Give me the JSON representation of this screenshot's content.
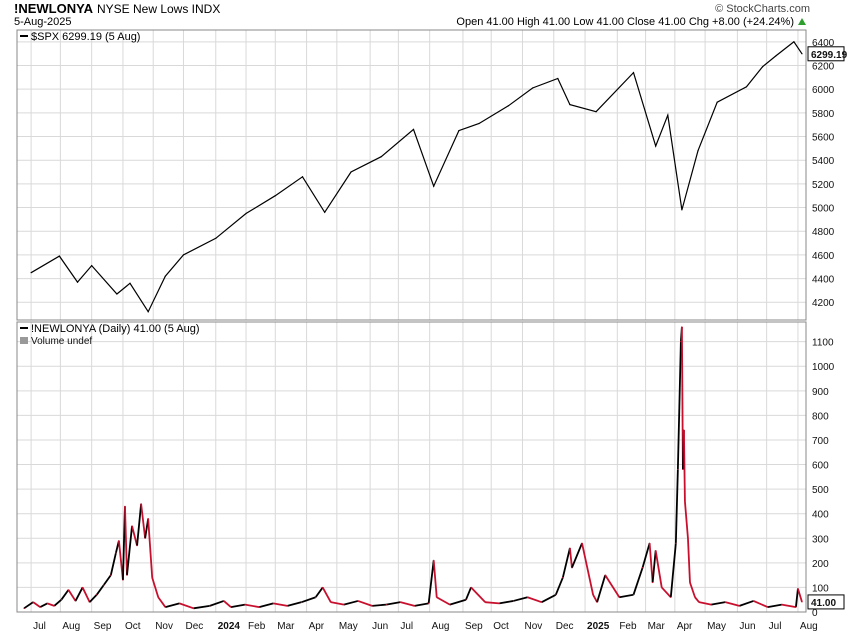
{
  "header": {
    "symbol": "!NEWLONYA",
    "description": "NYSE New Lows INDX",
    "date": "5-Aug-2025",
    "brand": "© StockCharts.com",
    "ohlc": "Open 41.00  High 41.00  Low 41.00  Close 41.00  Chg +8.00 (+24.24%)"
  },
  "colors": {
    "up": "#000000",
    "down": "#c8102e",
    "grid": "#d9d9d9",
    "change_arrow": "#2e9e2e"
  },
  "chart_data": [
    {
      "type": "line",
      "title": "$SPX 6299.19 (5 Aug)",
      "ylim": [
        4050,
        6500
      ],
      "yticks": [
        4200,
        4400,
        4600,
        4800,
        5000,
        5200,
        5400,
        5600,
        5800,
        6000,
        6200,
        6400
      ],
      "last_value_label": "6299.19",
      "series": [
        {
          "name": "$SPX",
          "x": [
            "2023-07-03",
            "2023-07-31",
            "2023-08-18",
            "2023-09-01",
            "2023-09-26",
            "2023-10-09",
            "2023-10-27",
            "2023-11-13",
            "2023-12-01",
            "2024-01-02",
            "2024-02-01",
            "2024-03-01",
            "2024-03-28",
            "2024-04-19",
            "2024-05-15",
            "2024-06-14",
            "2024-07-16",
            "2024-08-05",
            "2024-08-30",
            "2024-09-19",
            "2024-10-18",
            "2024-11-11",
            "2024-12-06",
            "2024-12-18",
            "2025-01-13",
            "2025-02-19",
            "2025-03-13",
            "2025-03-25",
            "2025-04-08",
            "2025-04-24",
            "2025-05-13",
            "2025-06-11",
            "2025-06-27",
            "2025-07-10",
            "2025-07-28",
            "2025-08-05"
          ],
          "values": [
            4450,
            4590,
            4370,
            4510,
            4270,
            4360,
            4120,
            4420,
            4600,
            4740,
            4950,
            5100,
            5260,
            4960,
            5300,
            5430,
            5660,
            5180,
            5650,
            5710,
            5860,
            6010,
            6090,
            5870,
            5810,
            6140,
            5520,
            5780,
            4980,
            5480,
            5890,
            6020,
            6190,
            6280,
            6400,
            6299
          ]
        }
      ]
    },
    {
      "type": "line",
      "title": "!NEWLONYA (Daily) 41.00 (5 Aug)",
      "subtitle": "Volume undef",
      "ylim": [
        0,
        1180
      ],
      "yticks": [
        0,
        100,
        200,
        300,
        400,
        500,
        600,
        700,
        800,
        900,
        1000,
        1100
      ],
      "last_value_label": "41.00",
      "x_tick_labels": [
        "Jul",
        "Aug",
        "Sep",
        "Oct",
        "Nov",
        "Dec",
        "2024",
        "Feb",
        "Mar",
        "Apr",
        "May",
        "Jun",
        "Jul",
        "Aug",
        "Sep",
        "Oct",
        "Nov",
        "Dec",
        "2025",
        "Feb",
        "Mar",
        "Apr",
        "May",
        "Jun",
        "Jul",
        "Aug"
      ],
      "x_tick_dates": [
        "2023-07-03",
        "2023-08-01",
        "2023-09-01",
        "2023-10-02",
        "2023-11-01",
        "2023-12-01",
        "2024-01-02",
        "2024-02-01",
        "2024-03-01",
        "2024-04-01",
        "2024-05-01",
        "2024-06-03",
        "2024-07-01",
        "2024-08-01",
        "2024-09-03",
        "2024-10-01",
        "2024-11-01",
        "2024-12-02",
        "2025-01-02",
        "2025-02-03",
        "2025-03-03",
        "2025-04-01",
        "2025-05-01",
        "2025-06-02",
        "2025-07-01",
        "2025-08-01"
      ],
      "x_bold_labels": [
        "2024",
        "2025"
      ],
      "series": [
        {
          "name": "!NEWLONYA",
          "x": [
            "2023-06-26",
            "2023-07-05",
            "2023-07-12",
            "2023-07-19",
            "2023-07-26",
            "2023-08-02",
            "2023-08-09",
            "2023-08-16",
            "2023-08-23",
            "2023-08-30",
            "2023-09-06",
            "2023-09-13",
            "2023-09-20",
            "2023-09-25",
            "2023-09-28",
            "2023-10-02",
            "2023-10-04",
            "2023-10-06",
            "2023-10-11",
            "2023-10-16",
            "2023-10-20",
            "2023-10-24",
            "2023-10-27",
            "2023-10-31",
            "2023-11-06",
            "2023-11-13",
            "2023-11-27",
            "2023-12-11",
            "2023-12-27",
            "2024-01-10",
            "2024-01-17",
            "2024-01-31",
            "2024-02-14",
            "2024-02-28",
            "2024-03-13",
            "2024-03-27",
            "2024-04-10",
            "2024-04-17",
            "2024-04-25",
            "2024-05-08",
            "2024-05-22",
            "2024-06-05",
            "2024-06-19",
            "2024-07-03",
            "2024-07-17",
            "2024-07-31",
            "2024-08-05",
            "2024-08-08",
            "2024-08-21",
            "2024-09-06",
            "2024-09-11",
            "2024-09-25",
            "2024-10-09",
            "2024-10-23",
            "2024-11-06",
            "2024-11-20",
            "2024-12-04",
            "2024-12-11",
            "2024-12-18",
            "2024-12-20",
            "2024-12-30",
            "2025-01-10",
            "2025-01-14",
            "2025-01-22",
            "2025-02-05",
            "2025-02-19",
            "2025-02-28",
            "2025-03-07",
            "2025-03-10",
            "2025-03-13",
            "2025-03-19",
            "2025-03-28",
            "2025-04-02",
            "2025-04-04",
            "2025-04-07",
            "2025-04-08",
            "2025-04-09",
            "2025-04-10",
            "2025-04-11",
            "2025-04-14",
            "2025-04-16",
            "2025-04-21",
            "2025-04-25",
            "2025-05-07",
            "2025-05-21",
            "2025-06-04",
            "2025-06-18",
            "2025-07-02",
            "2025-07-16",
            "2025-07-30",
            "2025-08-01",
            "2025-08-05"
          ],
          "values": [
            15,
            40,
            20,
            35,
            25,
            50,
            90,
            45,
            100,
            40,
            70,
            110,
            150,
            240,
            290,
            130,
            430,
            150,
            350,
            270,
            440,
            300,
            380,
            140,
            60,
            20,
            35,
            15,
            25,
            45,
            20,
            30,
            20,
            35,
            25,
            40,
            60,
            100,
            40,
            30,
            45,
            25,
            30,
            40,
            25,
            35,
            210,
            60,
            30,
            50,
            100,
            40,
            35,
            45,
            60,
            40,
            70,
            140,
            260,
            180,
            280,
            70,
            40,
            150,
            60,
            70,
            180,
            280,
            120,
            250,
            100,
            60,
            280,
            580,
            1100,
            1160,
            580,
            740,
            450,
            300,
            120,
            60,
            40,
            30,
            40,
            25,
            45,
            20,
            30,
            20,
            95,
            41
          ]
        }
      ]
    }
  ]
}
